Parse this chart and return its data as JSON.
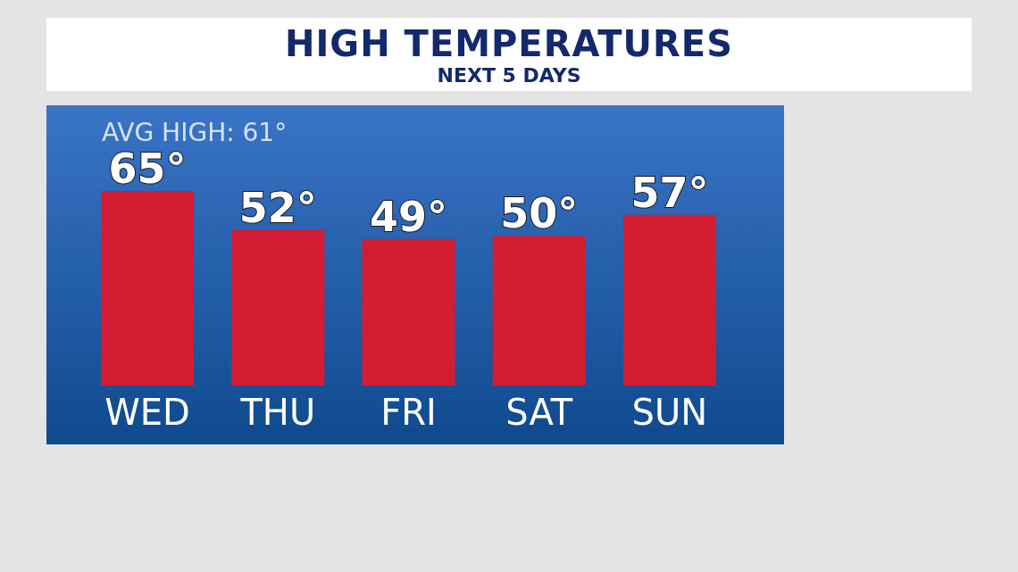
{
  "chart_data": {
    "type": "bar",
    "title": "HIGH TEMPERATURES",
    "subtitle": "NEXT 5 DAYS",
    "categories": [
      "WED",
      "THU",
      "FRI",
      "SAT",
      "SUN"
    ],
    "values": [
      65,
      52,
      49,
      50,
      57
    ],
    "value_labels": [
      "65°",
      "52°",
      "49°",
      "50°",
      "57°"
    ],
    "color": "#d41c33",
    "annotations": [
      "AVG HIGH: 61°"
    ]
  }
}
